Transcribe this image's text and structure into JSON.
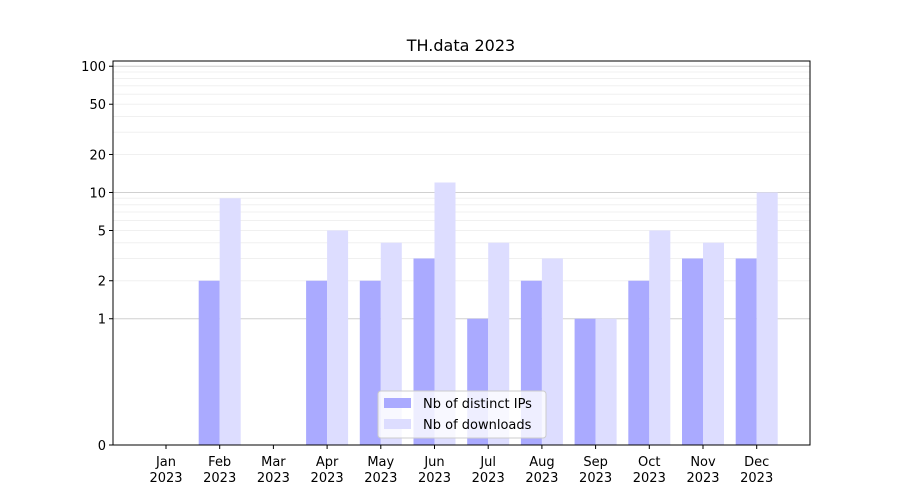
{
  "chart_data": {
    "type": "bar",
    "title": "TH.data 2023",
    "xlabel": "",
    "ylabel": "",
    "yscale": "symlog",
    "ylim": [
      0,
      110
    ],
    "yticks": [
      0,
      1,
      2,
      5,
      10,
      20,
      50,
      100
    ],
    "categories": [
      {
        "month": "Jan",
        "year": "2023"
      },
      {
        "month": "Feb",
        "year": "2023"
      },
      {
        "month": "Mar",
        "year": "2023"
      },
      {
        "month": "Apr",
        "year": "2023"
      },
      {
        "month": "May",
        "year": "2023"
      },
      {
        "month": "Jun",
        "year": "2023"
      },
      {
        "month": "Jul",
        "year": "2023"
      },
      {
        "month": "Aug",
        "year": "2023"
      },
      {
        "month": "Sep",
        "year": "2023"
      },
      {
        "month": "Oct",
        "year": "2023"
      },
      {
        "month": "Nov",
        "year": "2023"
      },
      {
        "month": "Dec",
        "year": "2023"
      }
    ],
    "series": [
      {
        "name": "Nb of distinct IPs",
        "color": "#aaaaff",
        "values": [
          0,
          2,
          0,
          2,
          2,
          3,
          1,
          2,
          1,
          2,
          3,
          3
        ]
      },
      {
        "name": "Nb of downloads",
        "color": "#ddddff",
        "values": [
          0,
          9,
          0,
          5,
          4,
          12,
          4,
          3,
          1,
          5,
          4,
          10
        ]
      }
    ],
    "grid": true,
    "legend": "bottom-center"
  }
}
